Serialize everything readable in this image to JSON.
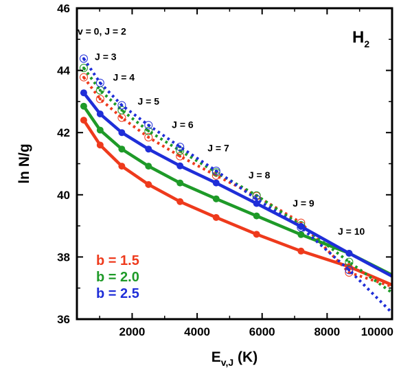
{
  "chart_data": {
    "type": "line",
    "title": "",
    "species_label": "H",
    "species_subscript": "2",
    "xlabel_main": "E",
    "xlabel_sub": "v,J",
    "xlabel_unit": " (K)",
    "ylabel": "ln N/g",
    "xlim": [
      300,
      10000
    ],
    "ylim": [
      36,
      46
    ],
    "x_ticks": [
      2000,
      4000,
      6000,
      8000,
      10000
    ],
    "x_tick_labels": [
      "2000",
      "4000",
      "6000",
      "8000",
      "10000"
    ],
    "y_ticks": [
      36,
      38,
      40,
      42,
      44,
      46
    ],
    "y_tick_labels": [
      "36",
      "38",
      "40",
      "42",
      "44",
      "46"
    ],
    "series": [
      {
        "name": "b = 1.5",
        "color": "#ee3a1c",
        "x": [
          510,
          1015,
          1682,
          2504,
          3474,
          4586,
          5830,
          7197,
          8677
        ],
        "fit": [
          42.4,
          41.6,
          40.92,
          40.33,
          39.78,
          39.27,
          38.73,
          38.19,
          37.69
        ],
        "fit_end": [
          10000,
          37.1
        ],
        "data": [
          43.78,
          43.08,
          42.48,
          41.85,
          41.24,
          40.62,
          39.96,
          39.1,
          37.5
        ],
        "dots_end": [
          10000,
          37.05
        ]
      },
      {
        "name": "b = 2.0",
        "color": "#1e9a28",
        "x": [
          510,
          1015,
          1682,
          2504,
          3474,
          4586,
          5830,
          7197,
          8677
        ],
        "fit": [
          42.85,
          42.08,
          41.47,
          40.92,
          40.38,
          39.87,
          39.32,
          38.72,
          38.12
        ],
        "fit_end": [
          10000,
          37.42
        ],
        "data": [
          44.08,
          43.36,
          42.72,
          42.05,
          41.42,
          40.72,
          39.98,
          39.02,
          37.84
        ],
        "dots_end": [
          10000,
          36.85
        ]
      },
      {
        "name": "b = 2.5",
        "color": "#1f2ed8",
        "x": [
          510,
          1015,
          1682,
          2504,
          3474,
          4586,
          5830,
          7197,
          8677
        ],
        "fit": [
          43.28,
          42.6,
          42.0,
          41.47,
          40.93,
          40.38,
          39.72,
          38.98,
          38.12
        ],
        "fit_end": [
          10000,
          37.38
        ],
        "data": [
          44.38,
          43.6,
          42.88,
          42.24,
          41.54,
          40.77,
          39.86,
          38.95,
          37.58
        ],
        "dots_end": [
          10000,
          36.2
        ]
      }
    ],
    "level_labels": [
      {
        "text": "v = 0, J = 2",
        "x": 320,
        "y": 45.15
      },
      {
        "text": "J = 3",
        "x": 850,
        "y": 44.33
      },
      {
        "text": "J = 4",
        "x": 1410,
        "y": 43.67
      },
      {
        "text": "J = 5",
        "x": 2170,
        "y": 42.9
      },
      {
        "text": "J = 6",
        "x": 3220,
        "y": 42.15
      },
      {
        "text": "J = 7",
        "x": 4320,
        "y": 41.4
      },
      {
        "text": "J = 8",
        "x": 5580,
        "y": 40.52
      },
      {
        "text": "J = 9",
        "x": 6940,
        "y": 39.62
      },
      {
        "text": "J = 10",
        "x": 8330,
        "y": 38.72
      }
    ],
    "legend": [
      {
        "text": "b = 1.5",
        "color": "#ee3a1c"
      },
      {
        "text": "b = 2.0",
        "color": "#1e9a28"
      },
      {
        "text": "b = 2.5",
        "color": "#1f2ed8"
      }
    ]
  }
}
